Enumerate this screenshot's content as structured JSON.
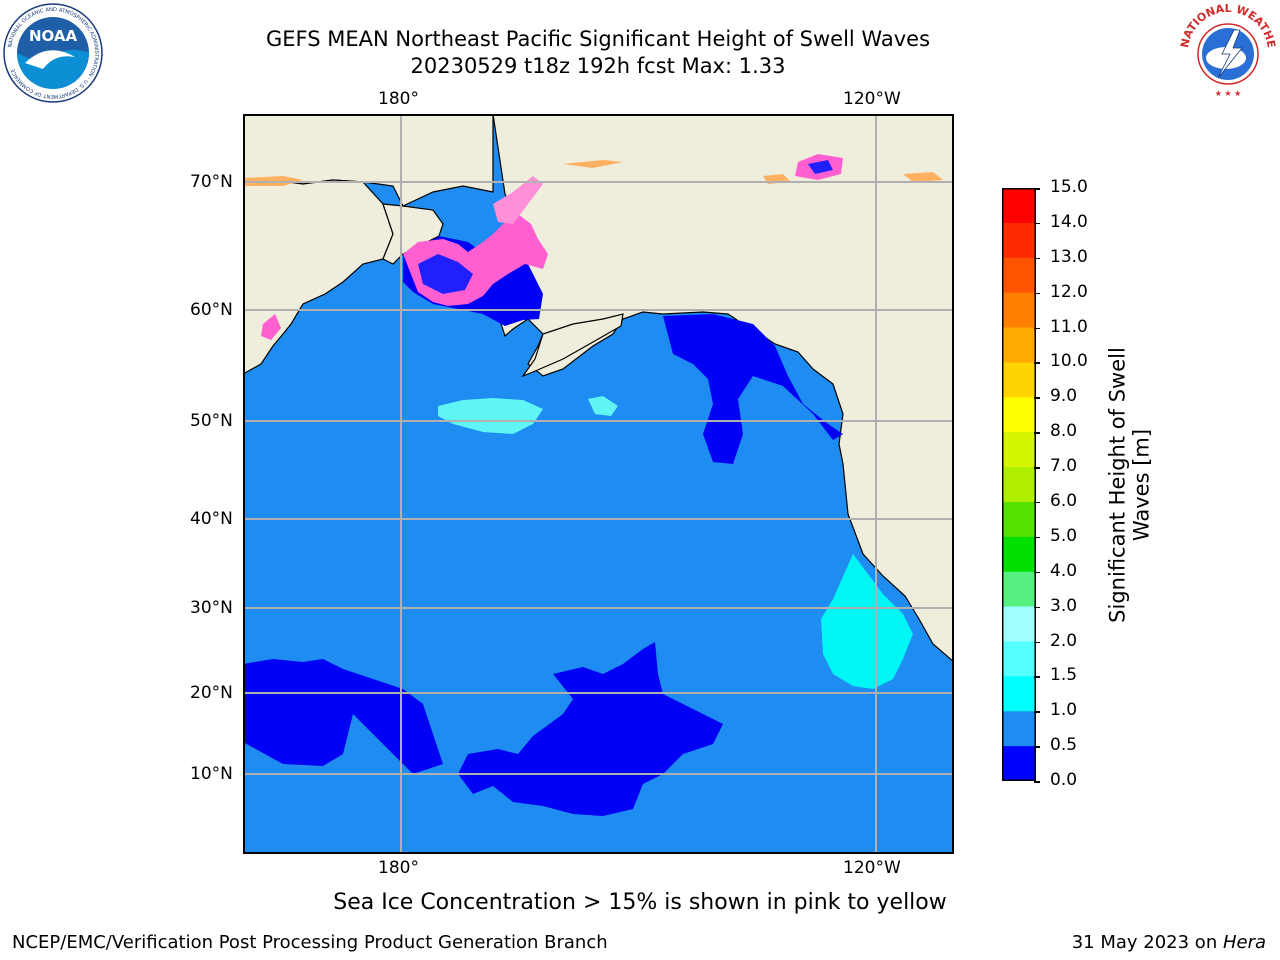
{
  "title": {
    "line1": "GEFS MEAN Northeast Pacific Significant Height of Swell Waves",
    "line2": "20230529 t18z 192h fcst   Max: 1.33"
  },
  "map": {
    "top_ticks": [
      "180°",
      "120°W"
    ],
    "bottom_ticks": [
      "180°",
      "120°W"
    ],
    "lat_ticks": [
      "70°N",
      "60°N",
      "50°N",
      "40°N",
      "30°N",
      "20°N",
      "10°N"
    ],
    "colors": {
      "ocean": "#1e8cf0",
      "land": "#efeedc",
      "low_swell": "#0000f5",
      "mid_swell": "#00f5f5"
    }
  },
  "colorbar": {
    "title": "Significant Height of Swell Waves [m]",
    "title_line1": "Significant Height of Swell",
    "title_line2": "Waves [m]",
    "labels": [
      "15.0",
      "14.0",
      "13.0",
      "12.0",
      "11.0",
      "10.0",
      "9.0",
      "8.0",
      "7.0",
      "6.0",
      "5.0",
      "4.0",
      "3.0",
      "2.0",
      "1.5",
      "1.0",
      "0.5",
      "0.0"
    ],
    "colors": [
      "#ff0000",
      "#ff2a00",
      "#ff5500",
      "#ff8000",
      "#ffaa00",
      "#ffd400",
      "#ffff00",
      "#d4f500",
      "#b0ee00",
      "#55e000",
      "#00e000",
      "#55f080",
      "#a0ffff",
      "#55ffff",
      "#00ffff",
      "#1e8cf0",
      "#0000ff"
    ]
  },
  "note": "Sea Ice Concentration > 15% is shown in pink to yellow",
  "footer": {
    "left": "NCEP/EMC/Verification Post Processing Product Generation Branch",
    "right_prefix": "31 May 2023 on ",
    "right_italic": "Hera"
  },
  "logos": {
    "noaa": {
      "text": "NOAA",
      "icon": "noaa-logo-icon"
    },
    "nws": {
      "text": "NATIONAL WEATHER SERVICE",
      "icon": "nws-logo-icon"
    }
  }
}
